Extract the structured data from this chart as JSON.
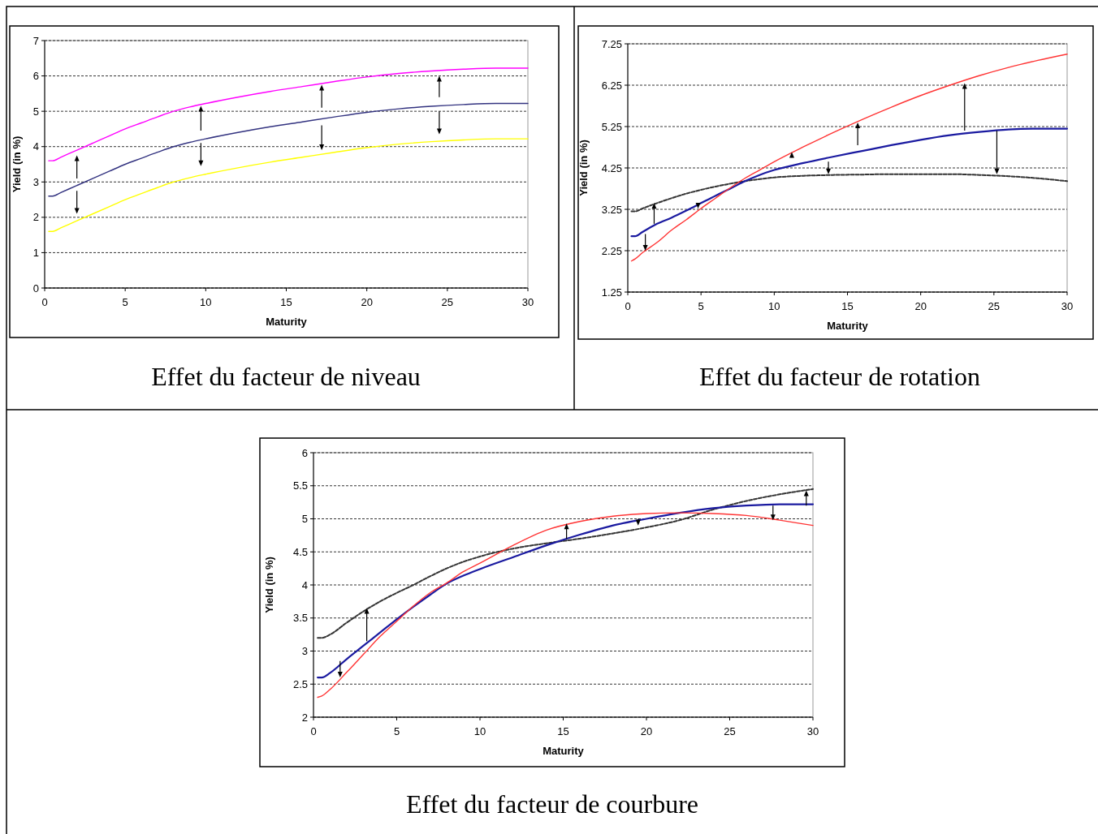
{
  "chart_data": [
    {
      "type": "line",
      "title": "Effet du facteur de niveau",
      "xlabel": "Maturity",
      "ylabel": "Yield (in %)",
      "x": [
        0.25,
        0.5,
        1,
        2,
        3,
        4,
        5,
        6,
        7,
        8,
        9,
        10,
        12,
        14,
        16,
        18,
        20,
        22,
        24,
        26,
        28,
        30
      ],
      "xlim": [
        0,
        30
      ],
      "xticks": [
        0,
        5,
        10,
        15,
        20,
        25,
        30
      ],
      "ylim": [
        0,
        7
      ],
      "yticks": [
        0,
        1,
        2,
        3,
        4,
        5,
        6,
        7
      ],
      "grid": "y",
      "series": [
        {
          "color": "#ff00ff",
          "values": [
            3.6,
            3.6,
            3.7,
            3.9,
            4.1,
            4.3,
            4.5,
            4.67,
            4.84,
            5.0,
            5.12,
            5.22,
            5.4,
            5.56,
            5.7,
            5.84,
            5.97,
            6.07,
            6.14,
            6.19,
            6.22,
            6.22
          ]
        },
        {
          "color": "#333380",
          "values": [
            2.6,
            2.6,
            2.7,
            2.9,
            3.1,
            3.3,
            3.5,
            3.67,
            3.84,
            4.0,
            4.12,
            4.22,
            4.4,
            4.56,
            4.7,
            4.84,
            4.97,
            5.07,
            5.14,
            5.19,
            5.22,
            5.22
          ]
        },
        {
          "color": "#ffff00",
          "values": [
            1.6,
            1.6,
            1.7,
            1.9,
            2.1,
            2.3,
            2.5,
            2.67,
            2.84,
            3.0,
            3.12,
            3.22,
            3.4,
            3.56,
            3.7,
            3.84,
            3.97,
            4.07,
            4.14,
            4.19,
            4.22,
            4.22
          ]
        }
      ]
    },
    {
      "type": "line",
      "title": "Effet du facteur de rotation",
      "xlabel": "Maturity",
      "ylabel": "Yield (in %)",
      "x": [
        0.25,
        0.5,
        1,
        2,
        3,
        4,
        5,
        6,
        7,
        8,
        9,
        10,
        12,
        14,
        16,
        18,
        20,
        22,
        24,
        26,
        28,
        30
      ],
      "xlim": [
        0,
        30
      ],
      "xticks": [
        0,
        5,
        10,
        15,
        20,
        25,
        30
      ],
      "ylim": [
        1.25,
        7.25
      ],
      "yticks": [
        1.25,
        2.25,
        3.25,
        4.25,
        5.25,
        6.25,
        7.25
      ],
      "grid": "y",
      "series": [
        {
          "color": "#333333",
          "line_style": "dashed",
          "values": [
            3.2,
            3.2,
            3.27,
            3.4,
            3.52,
            3.63,
            3.72,
            3.8,
            3.87,
            3.93,
            3.98,
            4.02,
            4.06,
            4.08,
            4.09,
            4.1,
            4.1,
            4.1,
            4.08,
            4.05,
            4.0,
            3.93
          ]
        },
        {
          "color": "#1a1aa0",
          "values": [
            2.6,
            2.6,
            2.7,
            2.9,
            3.05,
            3.22,
            3.4,
            3.58,
            3.75,
            3.93,
            4.08,
            4.2,
            4.37,
            4.52,
            4.66,
            4.8,
            4.93,
            5.04,
            5.12,
            5.18,
            5.2,
            5.2
          ]
        },
        {
          "color": "#ff3333",
          "values": [
            2.0,
            2.05,
            2.2,
            2.45,
            2.75,
            3.0,
            3.27,
            3.52,
            3.77,
            4.0,
            4.2,
            4.4,
            4.76,
            5.1,
            5.42,
            5.72,
            6.0,
            6.25,
            6.48,
            6.68,
            6.85,
            7.0
          ]
        }
      ]
    },
    {
      "type": "line",
      "title": "Effet du facteur de courbure",
      "xlabel": "Maturity",
      "ylabel": "Yield (in %)",
      "x": [
        0.25,
        0.5,
        1,
        2,
        3,
        4,
        5,
        6,
        7,
        8,
        9,
        10,
        12,
        14,
        16,
        18,
        20,
        22,
        24,
        26,
        28,
        30
      ],
      "xlim": [
        0,
        30
      ],
      "xticks": [
        0,
        5,
        10,
        15,
        20,
        25,
        30
      ],
      "ylim": [
        2,
        6
      ],
      "yticks": [
        2,
        2.5,
        3,
        3.5,
        4,
        4.5,
        5,
        5.5,
        6
      ],
      "grid": "y",
      "series": [
        {
          "color": "#333333",
          "line_style": "dashed",
          "values": [
            3.2,
            3.2,
            3.25,
            3.43,
            3.6,
            3.75,
            3.88,
            4.0,
            4.13,
            4.25,
            4.35,
            4.43,
            4.55,
            4.63,
            4.7,
            4.78,
            4.87,
            4.98,
            5.14,
            5.27,
            5.37,
            5.45
          ]
        },
        {
          "color": "#1a1aa0",
          "values": [
            2.6,
            2.6,
            2.67,
            2.88,
            3.08,
            3.28,
            3.48,
            3.67,
            3.85,
            4.02,
            4.14,
            4.24,
            4.42,
            4.6,
            4.76,
            4.9,
            5.0,
            5.09,
            5.16,
            5.2,
            5.22,
            5.22
          ]
        },
        {
          "color": "#ff3333",
          "values": [
            2.3,
            2.32,
            2.42,
            2.68,
            2.95,
            3.22,
            3.45,
            3.68,
            3.88,
            4.03,
            4.2,
            4.33,
            4.6,
            4.83,
            4.96,
            5.04,
            5.08,
            5.09,
            5.08,
            5.05,
            4.98,
            4.9
          ]
        }
      ]
    }
  ]
}
